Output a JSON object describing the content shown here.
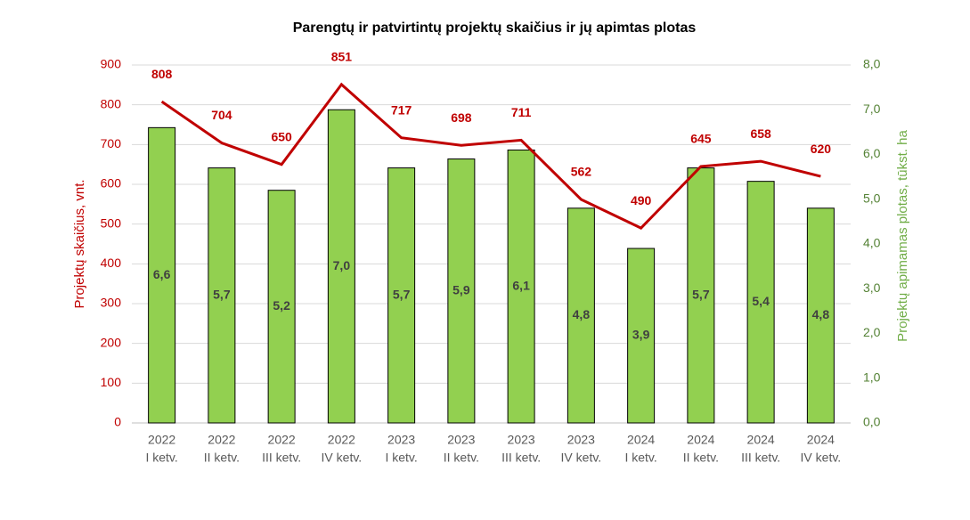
{
  "chart_data": {
    "type": "bar-line",
    "title": "Parengtų ir patvirtintų projektų skaičius ir jų apimtas plotas",
    "y_label": "Projektų skaičius, vnt.",
    "y2_label": "Projektų apimamas plotas, tūkst. ha",
    "categories": [
      [
        "2022",
        "I ketv."
      ],
      [
        "2022",
        "II ketv."
      ],
      [
        "2022",
        "III ketv."
      ],
      [
        "2022",
        "IV ketv."
      ],
      [
        "2023",
        "I ketv."
      ],
      [
        "2023",
        "II ketv."
      ],
      [
        "2023",
        "III ketv."
      ],
      [
        "2023",
        "IV ketv."
      ],
      [
        "2024",
        "I ketv."
      ],
      [
        "2024",
        "II ketv."
      ],
      [
        "2024",
        "III ketv."
      ],
      [
        "2024",
        "IV ketv."
      ]
    ],
    "series": [
      {
        "type": "bar",
        "axis": "y2",
        "color": "#92d050",
        "values": [
          6.6,
          5.7,
          5.2,
          7.0,
          5.7,
          5.9,
          6.1,
          4.8,
          3.9,
          5.7,
          5.4,
          4.8
        ],
        "value_labels": [
          "6,6",
          "5,7",
          "5,2",
          "7,0",
          "5,7",
          "5,9",
          "6,1",
          "4,8",
          "3,9",
          "5,7",
          "5,4",
          "4,8"
        ]
      },
      {
        "type": "line",
        "axis": "y",
        "color": "#c00000",
        "values": [
          808,
          704,
          650,
          851,
          717,
          698,
          711,
          562,
          490,
          645,
          658,
          620
        ]
      }
    ],
    "ylim": [
      0,
      900
    ],
    "yticks": [
      0,
      100,
      200,
      300,
      400,
      500,
      600,
      700,
      800,
      900
    ],
    "y2lim": [
      0,
      8
    ],
    "y2ticks": [
      {
        "value": 0,
        "label": "0,0"
      },
      {
        "value": 1,
        "label": "1,0"
      },
      {
        "value": 2,
        "label": "2,0"
      },
      {
        "value": 3,
        "label": "3,0"
      },
      {
        "value": 4,
        "label": "4,0"
      },
      {
        "value": 5,
        "label": "5,0"
      },
      {
        "value": 6,
        "label": "6,0"
      },
      {
        "value": 7,
        "label": "7,0"
      },
      {
        "value": 8,
        "label": "8,0"
      }
    ],
    "grid": true
  }
}
